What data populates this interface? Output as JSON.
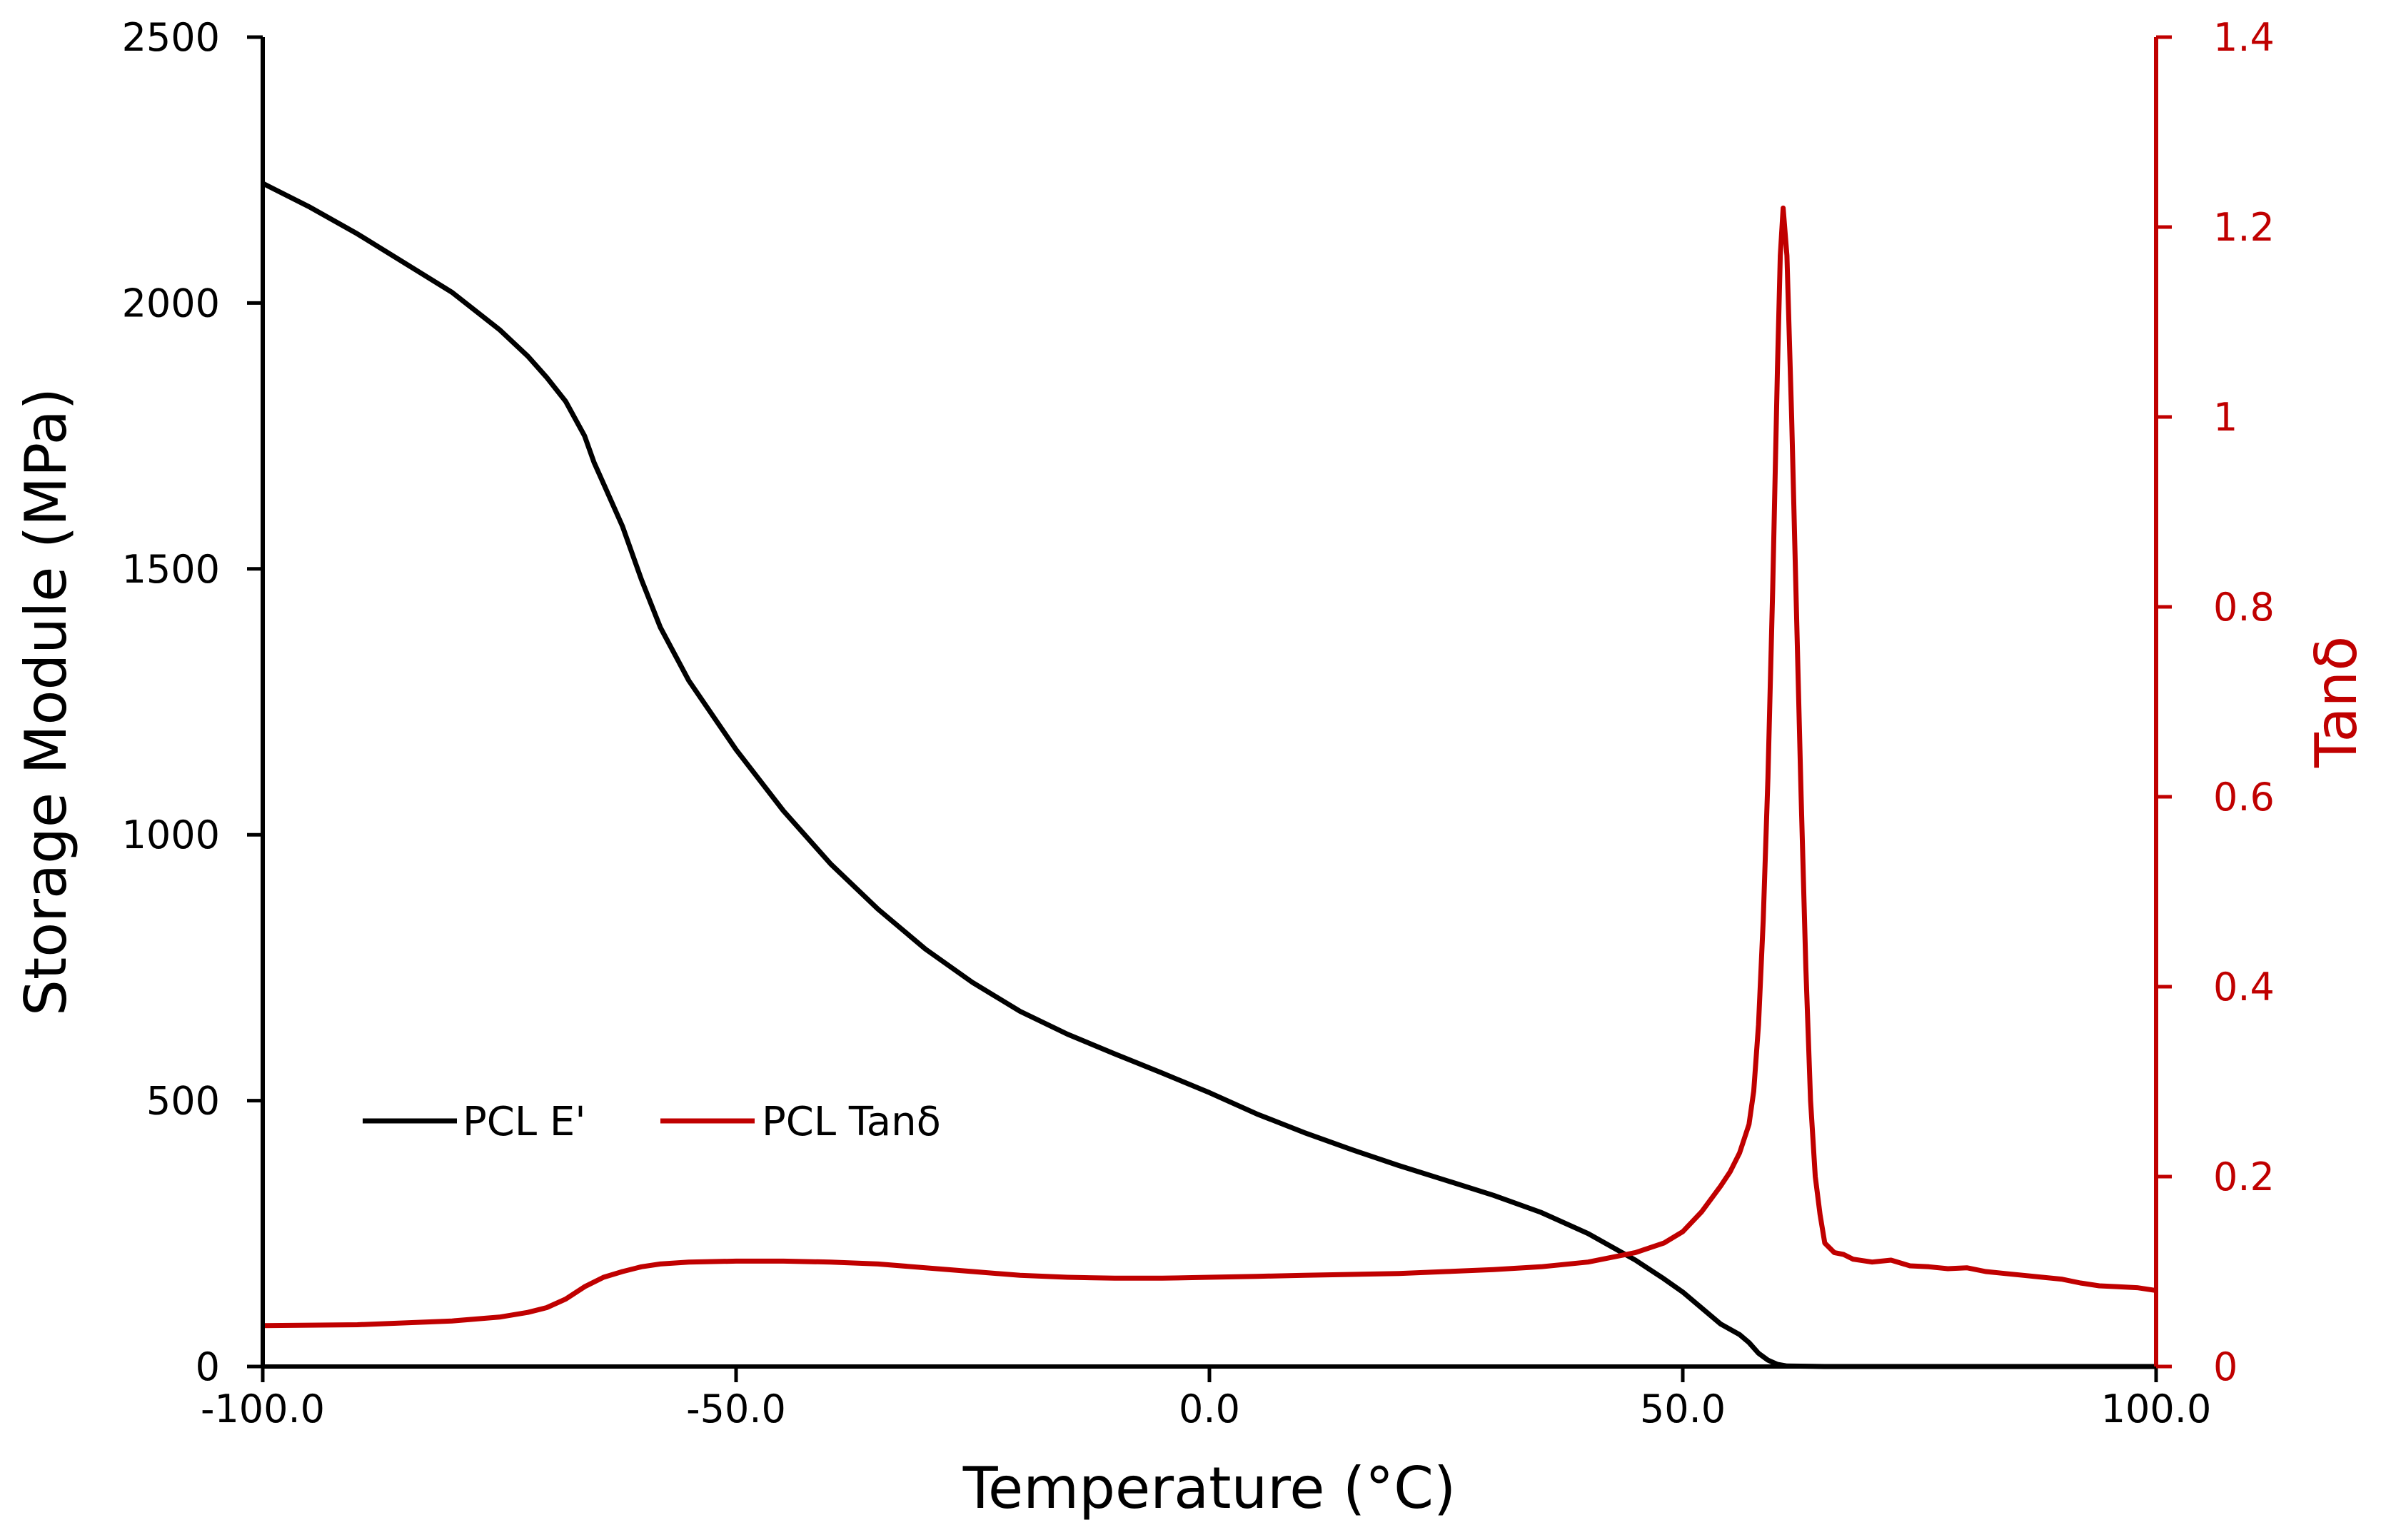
{
  "chart_data": {
    "type": "line",
    "title": "",
    "xlabel": "Temperature (°C)",
    "ylabel_left": "Storage Module (MPa)",
    "ylabel_right": "Tanδ",
    "xlim": [
      -100,
      100
    ],
    "ylim_left": [
      0,
      2500
    ],
    "ylim_right": [
      0,
      1.4
    ],
    "x_ticks": [
      -100,
      -50,
      0,
      50,
      100
    ],
    "x_tick_labels": [
      "-100.0",
      "-50.0",
      "0.0",
      "50.0",
      "100.0"
    ],
    "y_left_ticks": [
      0,
      500,
      1000,
      1500,
      2000,
      2500
    ],
    "y_left_tick_labels": [
      "0",
      "500",
      "1000",
      "1500",
      "2000",
      "2500"
    ],
    "y_right_ticks": [
      0,
      0.2,
      0.4,
      0.6,
      0.8,
      1.0,
      1.2,
      1.4
    ],
    "y_right_tick_labels": [
      "0",
      "0.2",
      "0.4",
      "0.6",
      "0.8",
      "1",
      "1.2",
      "1.4"
    ],
    "grid": false,
    "legend_position": "bottom-left",
    "colors": {
      "e_prime": "#000000",
      "tan_delta": "#c00000",
      "axis_left": "#000000",
      "axis_right": "#c00000"
    },
    "series": [
      {
        "name": "PCL E'",
        "axis": "left",
        "color": "#000000",
        "x": [
          -100,
          -95,
          -90,
          -85,
          -80,
          -75,
          -72,
          -70,
          -68,
          -66,
          -65,
          -64,
          -62,
          -60,
          -58,
          -55,
          -50,
          -45,
          -40,
          -35,
          -30,
          -25,
          -20,
          -15,
          -10,
          -5,
          0,
          5,
          10,
          15,
          20,
          25,
          30,
          35,
          40,
          45,
          48,
          50,
          52,
          54,
          56,
          57,
          58,
          59,
          60,
          61,
          65,
          70,
          80,
          90,
          100
        ],
        "y": [
          2225,
          2180,
          2130,
          2075,
          2020,
          1950,
          1900,
          1860,
          1815,
          1750,
          1700,
          1660,
          1580,
          1480,
          1390,
          1290,
          1160,
          1045,
          945,
          860,
          785,
          722,
          668,
          625,
          588,
          552,
          515,
          475,
          440,
          408,
          378,
          350,
          322,
          290,
          250,
          200,
          165,
          140,
          110,
          80,
          60,
          45,
          25,
          12,
          4,
          1,
          0,
          0,
          0,
          0,
          0
        ]
      },
      {
        "name": "PCL Tanδ",
        "axis": "right",
        "color": "#c00000",
        "x": [
          -100,
          -90,
          -80,
          -75,
          -72,
          -70,
          -68,
          -66,
          -64,
          -62,
          -60,
          -58,
          -55,
          -50,
          -45,
          -40,
          -35,
          -30,
          -25,
          -20,
          -15,
          -10,
          -5,
          0,
          5,
          10,
          15,
          20,
          25,
          30,
          35,
          40,
          45,
          48,
          50,
          52,
          54,
          55,
          56,
          57,
          57.5,
          58,
          58.5,
          59,
          59.5,
          60,
          60.3,
          60.6,
          61,
          61.5,
          62,
          62.5,
          63,
          63.5,
          64,
          64.5,
          65,
          66,
          67,
          68,
          70,
          72,
          74,
          76,
          78,
          80,
          82,
          84,
          86,
          88,
          90,
          92,
          94,
          96,
          98,
          100
        ],
        "y": [
          0.043,
          0.044,
          0.048,
          0.052,
          0.057,
          0.062,
          0.071,
          0.084,
          0.094,
          0.1,
          0.105,
          0.108,
          0.11,
          0.111,
          0.111,
          0.11,
          0.108,
          0.104,
          0.1,
          0.096,
          0.094,
          0.093,
          0.093,
          0.094,
          0.095,
          0.096,
          0.097,
          0.098,
          0.1,
          0.102,
          0.105,
          0.11,
          0.12,
          0.13,
          0.142,
          0.163,
          0.19,
          0.205,
          0.225,
          0.255,
          0.29,
          0.36,
          0.47,
          0.62,
          0.82,
          1.05,
          1.17,
          1.22,
          1.17,
          1.0,
          0.8,
          0.6,
          0.42,
          0.28,
          0.2,
          0.16,
          0.13,
          0.12,
          0.118,
          0.113,
          0.11,
          0.112,
          0.106,
          0.105,
          0.103,
          0.104,
          0.1,
          0.098,
          0.096,
          0.094,
          0.092,
          0.088,
          0.085,
          0.084,
          0.083,
          0.08
        ]
      }
    ]
  }
}
